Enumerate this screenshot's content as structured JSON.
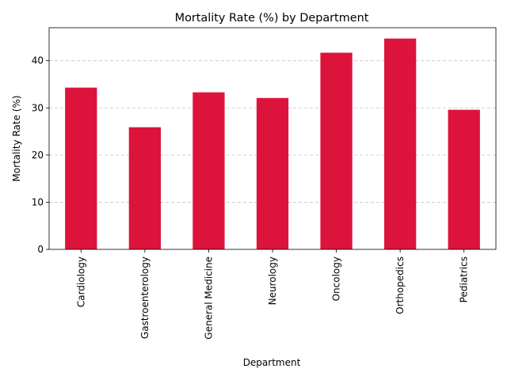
{
  "chart_data": {
    "type": "bar",
    "title": "Mortality Rate (%) by Department",
    "xlabel": "Department",
    "ylabel": "Mortality Rate (%)",
    "categories": [
      "Cardiology",
      "Gastroenterology",
      "General Medicine",
      "Neurology",
      "Oncology",
      "Orthopedics",
      "Pediatrics"
    ],
    "values": [
      34.3,
      25.9,
      33.3,
      32.1,
      41.7,
      44.7,
      29.6
    ],
    "ylim": [
      0,
      47
    ],
    "yticks": [
      0,
      10,
      20,
      30,
      40
    ],
    "grid": {
      "y": true,
      "x": false,
      "style": "dashed"
    },
    "bar_color": "#DC143C",
    "legend": "none"
  }
}
